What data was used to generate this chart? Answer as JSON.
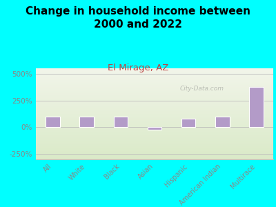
{
  "title": "Change in household income between\n2000 and 2022",
  "subtitle": "El Mirage, AZ",
  "categories": [
    "All",
    "White",
    "Black",
    "Asian",
    "Hispanic",
    "American Indian",
    "Multirace"
  ],
  "values": [
    100,
    100,
    100,
    -25,
    80,
    100,
    375
  ],
  "bar_color": "#b39bc8",
  "bar_edge_color": "#ffffff",
  "background_color": "#00ffff",
  "plot_bg_top": "#f2f5ea",
  "plot_bg_bottom": "#daeac8",
  "title_fontsize": 11,
  "subtitle_fontsize": 9.5,
  "subtitle_color": "#bb4444",
  "tick_label_color": "#888888",
  "axis_color": "#bbbbbb",
  "ylim": [
    -300,
    550
  ],
  "yticks": [
    -250,
    0,
    250,
    500
  ],
  "ytick_labels": [
    "-250%",
    "0%",
    "250%",
    "500%"
  ],
  "watermark": "City-Data.com"
}
